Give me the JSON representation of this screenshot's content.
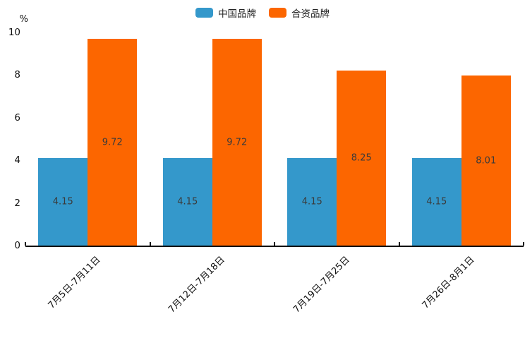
{
  "chart_data": {
    "type": "bar",
    "categories": [
      "7月5日-7月11日",
      "7月12日-7月18日",
      "7月19日-7月25日",
      "7月26日-8月1日"
    ],
    "series": [
      {
        "name": "中国品牌",
        "color": "#3498cb",
        "values": [
          4.15,
          4.15,
          4.15,
          4.15
        ]
      },
      {
        "name": "合资品牌",
        "color": "#fc6600",
        "values": [
          9.72,
          9.72,
          8.25,
          8.01
        ]
      }
    ],
    "title": "",
    "xlabel": "",
    "ylabel": "%",
    "ylim": [
      0,
      10
    ],
    "yticks": [
      0,
      2,
      4,
      6,
      8,
      10
    ],
    "grid": false,
    "legend_position": "top-center",
    "value_labels": true,
    "value_label_color": "#3a3a3a",
    "axis_color": "#111111"
  }
}
